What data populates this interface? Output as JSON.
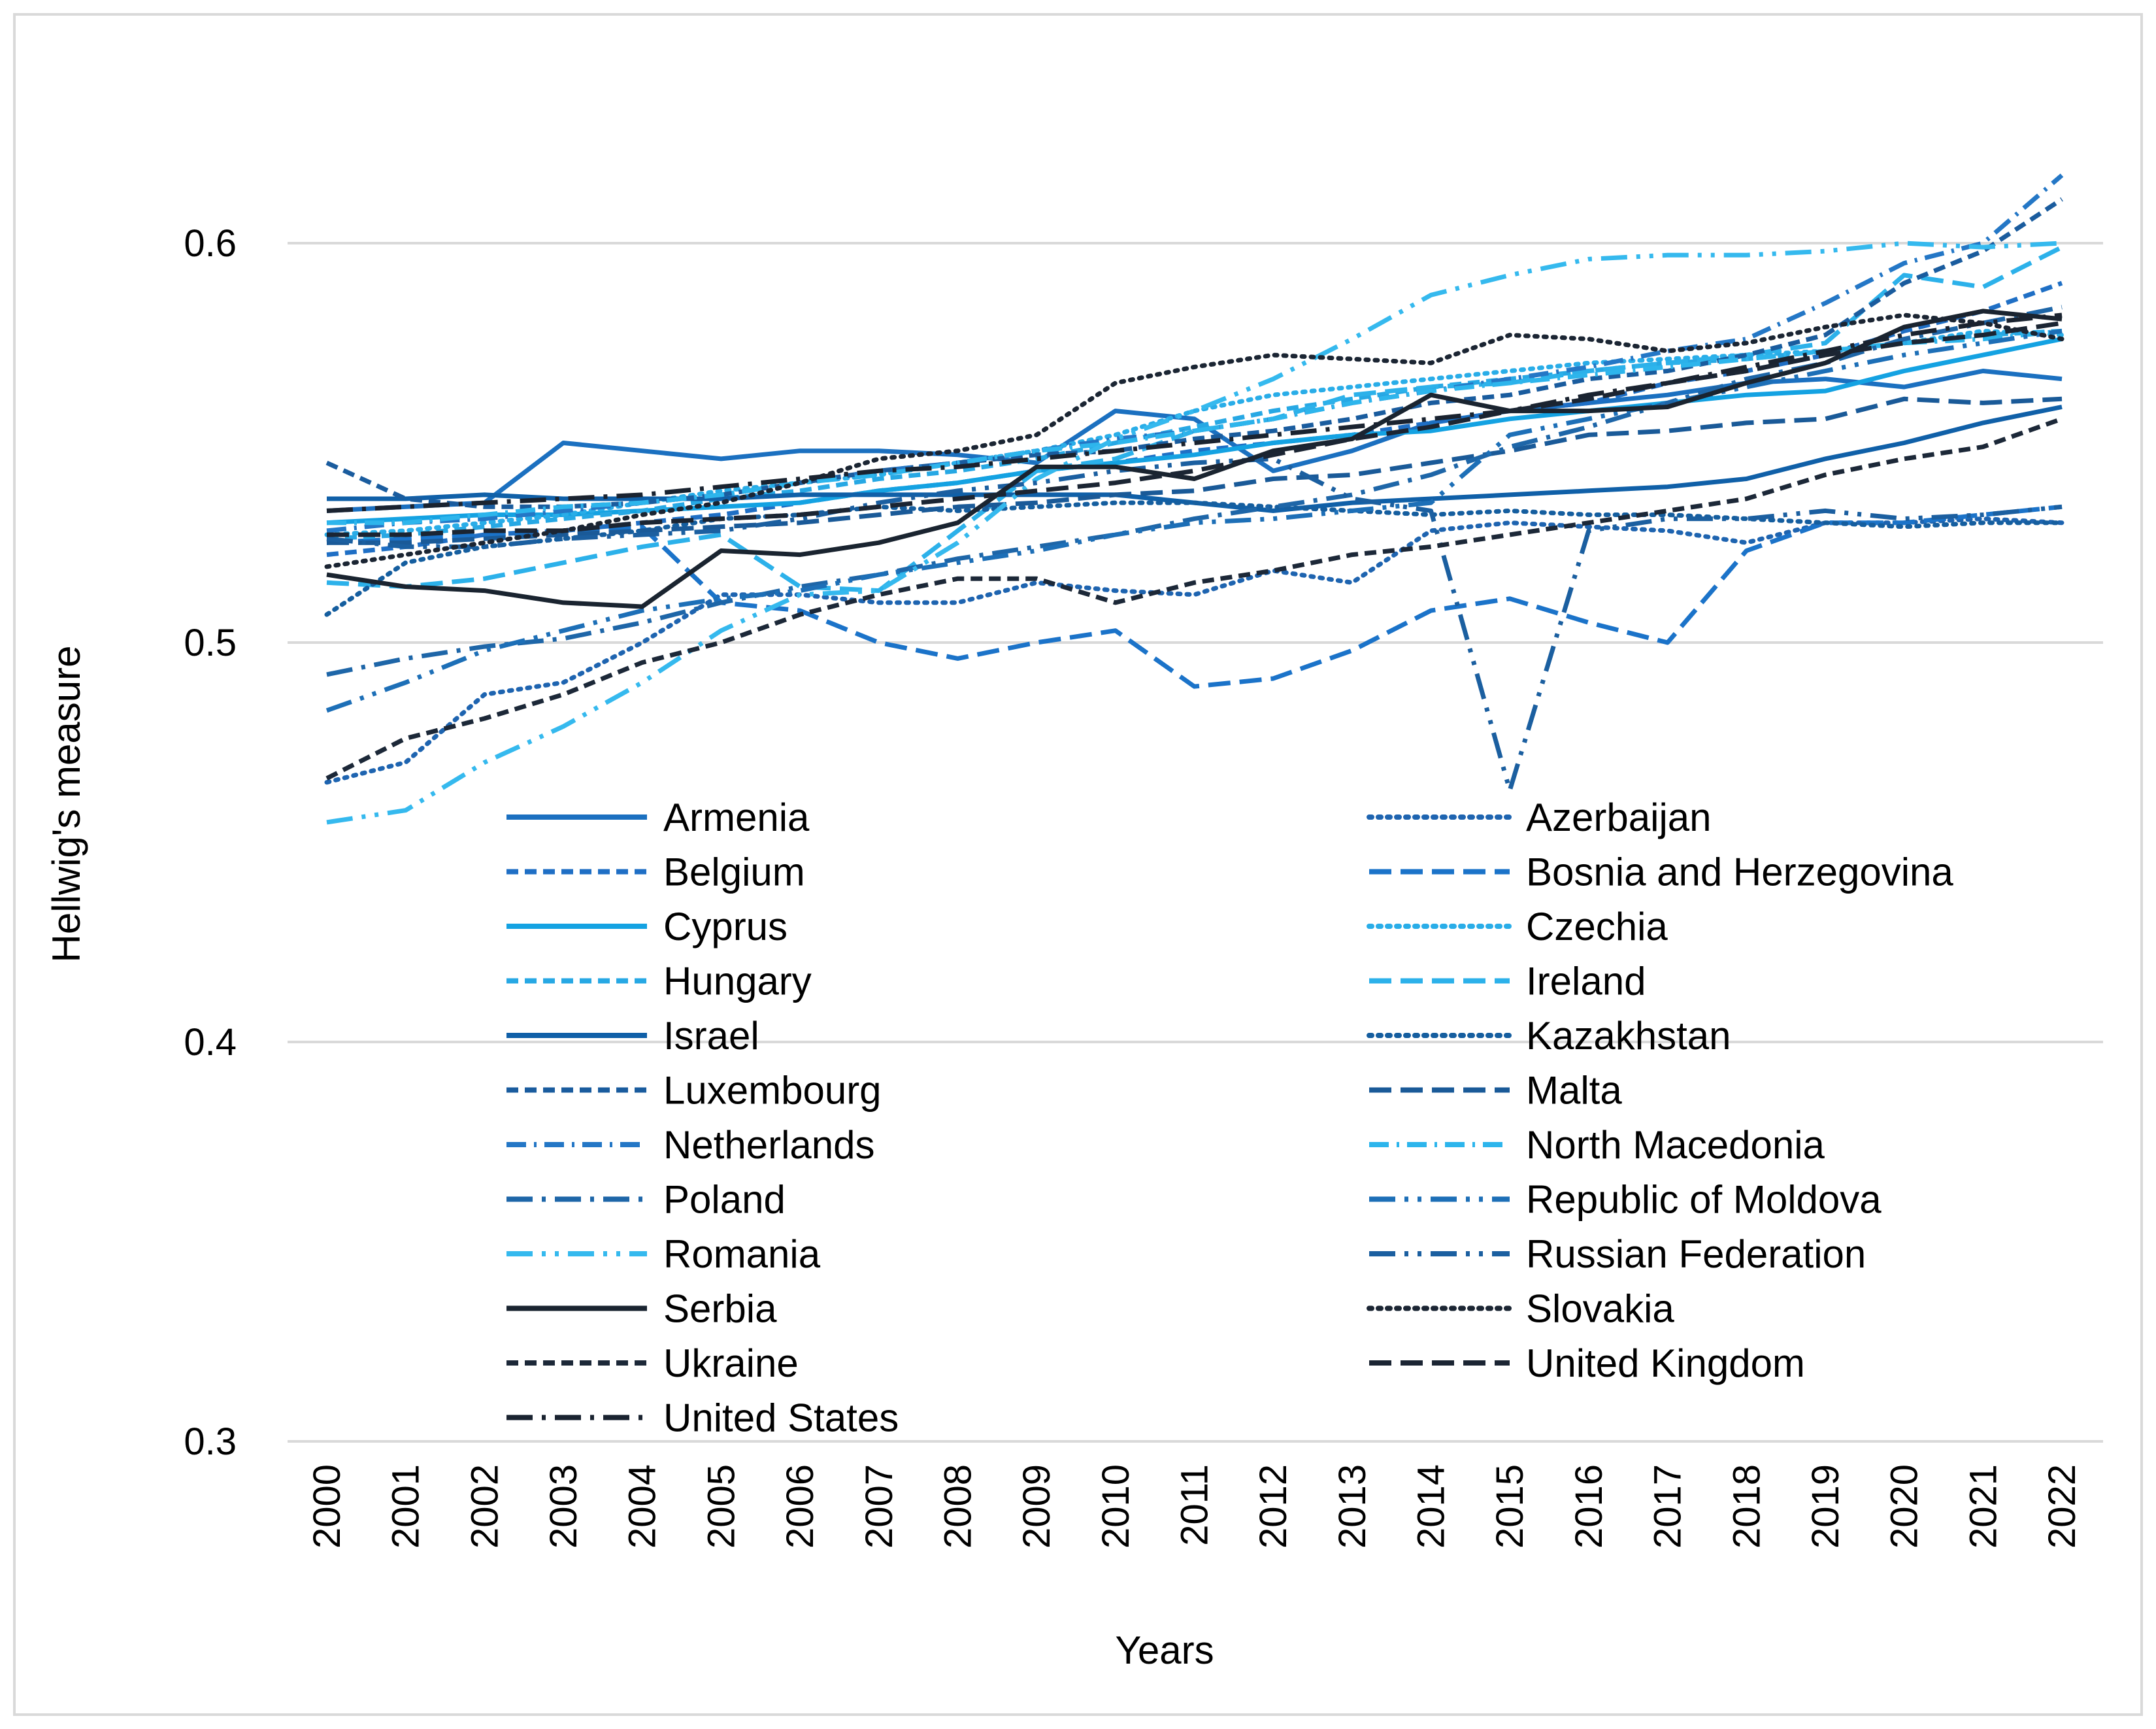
{
  "chart_data": {
    "type": "line",
    "title": "",
    "xlabel": "Years",
    "ylabel": "Hellwig's measure",
    "ylim": [
      0.3,
      0.62
    ],
    "yticks": [
      0.3,
      0.4,
      0.5,
      0.6
    ],
    "ytick_labels": [
      "0.3",
      "0.4",
      "0.5",
      "0.6"
    ],
    "grid": "horizontal",
    "legend_position": "inside-lower-center",
    "categories": [
      "2000",
      "2001",
      "2002",
      "2003",
      "2004",
      "2005",
      "2006",
      "2007",
      "2008",
      "2009",
      "2010",
      "2011",
      "2012",
      "2013",
      "2014",
      "2015",
      "2016",
      "2017",
      "2018",
      "2019",
      "2020",
      "2021",
      "2022"
    ],
    "series": [
      {
        "name": "Armenia",
        "style": "solid",
        "color": "#1B70C0",
        "values": [
          0.533,
          0.534,
          0.535,
          0.55,
          0.548,
          0.546,
          0.548,
          0.548,
          0.547,
          0.545,
          0.558,
          0.556,
          0.543,
          0.548,
          0.555,
          0.558,
          0.56,
          0.562,
          0.565,
          0.566,
          0.564,
          0.568,
          0.566
        ]
      },
      {
        "name": "Azerbaijan",
        "style": "dot",
        "color": "#1E64B0",
        "values": [
          0.465,
          0.47,
          0.487,
          0.49,
          0.5,
          0.512,
          0.512,
          0.51,
          0.51,
          0.515,
          0.513,
          0.512,
          0.518,
          0.515,
          0.528,
          0.53,
          0.529,
          0.528,
          0.525,
          0.53,
          0.53,
          0.531,
          0.53
        ]
      },
      {
        "name": "Belgium",
        "style": "dash",
        "color": "#1F6FC5",
        "values": [
          0.522,
          0.524,
          0.527,
          0.528,
          0.53,
          0.532,
          0.535,
          0.538,
          0.54,
          0.543,
          0.545,
          0.548,
          0.55,
          0.552,
          0.555,
          0.558,
          0.56,
          0.565,
          0.568,
          0.572,
          0.578,
          0.583,
          0.59
        ]
      },
      {
        "name": "Bosnia and Herzegovina",
        "style": "longdash",
        "color": "#1B73C9",
        "values": [
          0.525,
          0.526,
          0.527,
          0.528,
          0.529,
          0.51,
          0.508,
          0.5,
          0.496,
          0.5,
          0.503,
          0.489,
          0.491,
          0.498,
          0.508,
          0.511,
          0.505,
          0.5,
          0.523,
          0.53,
          0.53,
          0.532,
          0.534
        ]
      },
      {
        "name": "Cyprus",
        "style": "solid",
        "color": "#14A2E2",
        "values": [
          0.53,
          0.531,
          0.532,
          0.532,
          0.533,
          0.534,
          0.535,
          0.538,
          0.54,
          0.543,
          0.545,
          0.547,
          0.55,
          0.552,
          0.553,
          0.556,
          0.558,
          0.56,
          0.562,
          0.563,
          0.568,
          0.572,
          0.576
        ]
      },
      {
        "name": "Czechia",
        "style": "dot",
        "color": "#29ADE8",
        "values": [
          0.527,
          0.528,
          0.53,
          0.532,
          0.535,
          0.538,
          0.54,
          0.542,
          0.545,
          0.548,
          0.552,
          0.558,
          0.562,
          0.564,
          0.566,
          0.568,
          0.57,
          0.571,
          0.572,
          0.573,
          0.575,
          0.578,
          0.577
        ]
      },
      {
        "name": "Hungary",
        "style": "dash",
        "color": "#27A8E4",
        "values": [
          0.526,
          0.527,
          0.529,
          0.531,
          0.533,
          0.536,
          0.538,
          0.541,
          0.543,
          0.546,
          0.55,
          0.554,
          0.558,
          0.561,
          0.564,
          0.566,
          0.568,
          0.57,
          0.571,
          0.573,
          0.575,
          0.577,
          0.578
        ]
      },
      {
        "name": "Ireland",
        "style": "longdash",
        "color": "#2CB1EA",
        "values": [
          0.515,
          0.514,
          0.516,
          0.52,
          0.524,
          0.527,
          0.514,
          0.513,
          0.528,
          0.543,
          0.546,
          0.553,
          0.556,
          0.562,
          0.564,
          0.565,
          0.568,
          0.57,
          0.572,
          0.575,
          0.592,
          0.589,
          0.599
        ]
      },
      {
        "name": "Israel",
        "style": "solid",
        "color": "#1060A8",
        "values": [
          0.536,
          0.536,
          0.537,
          0.536,
          0.536,
          0.536,
          0.537,
          0.537,
          0.537,
          0.537,
          0.537,
          0.535,
          0.533,
          0.535,
          0.536,
          0.537,
          0.538,
          0.539,
          0.541,
          0.546,
          0.55,
          0.555,
          0.559
        ]
      },
      {
        "name": "Kazakhstan",
        "style": "dot",
        "color": "#155E9F",
        "values": [
          0.507,
          0.52,
          0.524,
          0.526,
          0.528,
          0.531,
          0.532,
          0.534,
          0.533,
          0.534,
          0.535,
          0.535,
          0.534,
          0.533,
          0.532,
          0.533,
          0.532,
          0.532,
          0.531,
          0.53,
          0.529,
          0.53,
          0.53
        ]
      },
      {
        "name": "Luxembourg",
        "style": "dash",
        "color": "#1A5C9E",
        "values": [
          0.545,
          0.536,
          0.534,
          0.534,
          0.535,
          0.537,
          0.54,
          0.543,
          0.545,
          0.547,
          0.548,
          0.551,
          0.553,
          0.556,
          0.56,
          0.562,
          0.566,
          0.568,
          0.572,
          0.577,
          0.59,
          0.598,
          0.611
        ]
      },
      {
        "name": "Malta",
        "style": "longdash",
        "color": "#1A5A98",
        "values": [
          0.525,
          0.525,
          0.526,
          0.527,
          0.528,
          0.529,
          0.53,
          0.532,
          0.534,
          0.535,
          0.537,
          0.538,
          0.541,
          0.542,
          0.545,
          0.548,
          0.552,
          0.553,
          0.555,
          0.556,
          0.561,
          0.56,
          0.561
        ]
      },
      {
        "name": "Netherlands",
        "style": "dashdot",
        "color": "#2477C6",
        "values": [
          0.528,
          0.53,
          0.531,
          0.533,
          0.535,
          0.537,
          0.54,
          0.543,
          0.545,
          0.548,
          0.551,
          0.553,
          0.556,
          0.56,
          0.563,
          0.566,
          0.569,
          0.573,
          0.576,
          0.585,
          0.595,
          0.6,
          0.617
        ]
      },
      {
        "name": "North Macedonia",
        "style": "dashdot",
        "color": "#2DB5EC",
        "values": [
          0.53,
          0.53,
          0.532,
          0.534,
          0.535,
          0.537,
          0.54,
          0.542,
          0.545,
          0.548,
          0.55,
          0.553,
          0.556,
          0.56,
          0.563,
          0.565,
          0.567,
          0.569,
          0.571,
          0.573,
          0.575,
          0.576,
          0.578
        ]
      },
      {
        "name": "Poland",
        "style": "longdashdot",
        "color": "#1E66A8",
        "values": [
          0.492,
          0.496,
          0.499,
          0.501,
          0.505,
          0.51,
          0.514,
          0.517,
          0.521,
          0.524,
          0.527,
          0.531,
          0.534,
          0.537,
          0.542,
          0.549,
          0.554,
          0.56,
          0.566,
          0.57,
          0.576,
          0.58,
          0.584
        ]
      },
      {
        "name": "Republic of Moldova",
        "style": "longdashdotdot",
        "color": "#1D6FB7",
        "values": [
          0.483,
          0.49,
          0.498,
          0.503,
          0.508,
          0.511,
          0.513,
          0.517,
          0.52,
          0.523,
          0.527,
          0.53,
          0.531,
          0.533,
          0.535,
          0.552,
          0.556,
          0.56,
          0.564,
          0.568,
          0.572,
          0.575,
          0.578
        ]
      },
      {
        "name": "Romania",
        "style": "longdashdotdot",
        "color": "#35B9EE",
        "values": [
          0.455,
          0.458,
          0.47,
          0.479,
          0.49,
          0.503,
          0.512,
          0.513,
          0.525,
          0.541,
          0.551,
          0.558,
          0.566,
          0.576,
          0.587,
          0.592,
          0.596,
          0.597,
          0.597,
          0.598,
          0.6,
          0.599,
          0.6
        ]
      },
      {
        "name": "Russian Federation",
        "style": "longdashdotdot",
        "color": "#1B5FA0",
        "values": [
          0.526,
          0.524,
          0.524,
          0.526,
          0.527,
          0.528,
          0.531,
          0.535,
          0.538,
          0.54,
          0.543,
          0.545,
          0.546,
          0.536,
          0.533,
          0.463,
          0.528,
          0.531,
          0.531,
          0.533,
          0.531,
          0.532,
          0.534
        ]
      },
      {
        "name": "Serbia",
        "style": "solid",
        "color": "#1A2430",
        "values": [
          0.517,
          0.514,
          0.513,
          0.51,
          0.509,
          0.523,
          0.522,
          0.525,
          0.53,
          0.544,
          0.544,
          0.541,
          0.548,
          0.551,
          0.562,
          0.558,
          0.558,
          0.559,
          0.565,
          0.57,
          0.579,
          0.583,
          0.581
        ]
      },
      {
        "name": "Slovakia",
        "style": "dot",
        "color": "#1B2533",
        "values": [
          0.519,
          0.522,
          0.525,
          0.528,
          0.532,
          0.535,
          0.54,
          0.546,
          0.548,
          0.552,
          0.565,
          0.569,
          0.572,
          0.571,
          0.57,
          0.577,
          0.576,
          0.573,
          0.575,
          0.579,
          0.582,
          0.58,
          0.576
        ]
      },
      {
        "name": "Ukraine",
        "style": "dash",
        "color": "#1C2838",
        "values": [
          0.466,
          0.476,
          0.481,
          0.487,
          0.495,
          0.5,
          0.507,
          0.512,
          0.516,
          0.516,
          0.51,
          0.515,
          0.518,
          0.522,
          0.524,
          0.527,
          0.53,
          0.533,
          0.536,
          0.542,
          0.546,
          0.549,
          0.556
        ]
      },
      {
        "name": "United Kingdom",
        "style": "longdash",
        "color": "#1B2533",
        "values": [
          0.527,
          0.527,
          0.528,
          0.528,
          0.53,
          0.531,
          0.532,
          0.534,
          0.536,
          0.538,
          0.54,
          0.543,
          0.547,
          0.551,
          0.554,
          0.558,
          0.561,
          0.565,
          0.568,
          0.572,
          0.575,
          0.577,
          0.58
        ]
      },
      {
        "name": "United States",
        "style": "longdashdot",
        "color": "#1A2330",
        "values": [
          0.533,
          0.534,
          0.535,
          0.536,
          0.537,
          0.539,
          0.541,
          0.543,
          0.544,
          0.546,
          0.548,
          0.55,
          0.552,
          0.554,
          0.556,
          0.558,
          0.562,
          0.565,
          0.569,
          0.573,
          0.577,
          0.58,
          0.582
        ]
      }
    ]
  }
}
